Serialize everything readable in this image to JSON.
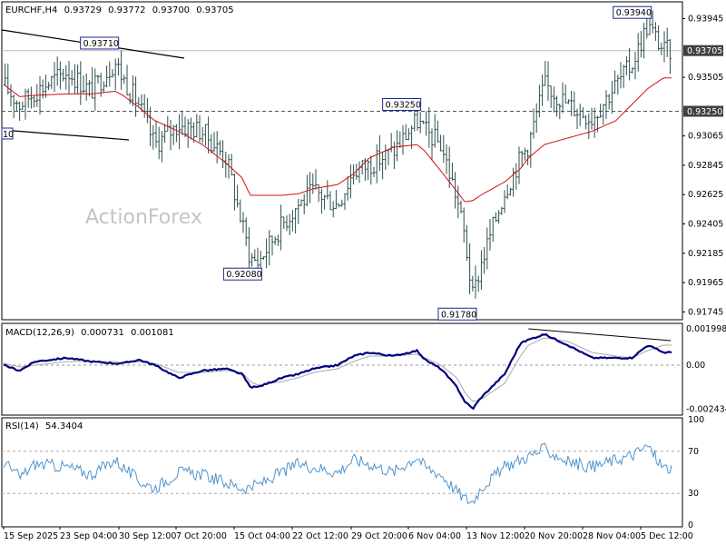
{
  "header": {
    "symbol": "EURCHF,H4",
    "open": "0.93729",
    "high": "0.93772",
    "low": "0.93700",
    "close": "0.93705"
  },
  "watermark": "ActionForex",
  "colors": {
    "candle": "#2f4f4f",
    "moving_average": "#d01010",
    "macd_line": "#000080",
    "macd_signal": "#a8a8a8",
    "rsi_line": "#4f94cd",
    "trendline": "#000000",
    "price_label_bg": "#404040"
  },
  "chart_data": [
    {
      "type": "candlestick",
      "panel": "price",
      "symbol": "EURCHF",
      "timeframe": "H4",
      "y_ticks": [
        "0.93945",
        "0.93725",
        "0.93505",
        "0.93285",
        "0.93065",
        "0.92845",
        "0.92625",
        "0.92405",
        "0.92185",
        "0.91965",
        "0.91745"
      ],
      "ylim": [
        0.917,
        0.9403
      ],
      "current_price": "0.93705",
      "horizontal_line": "0.93250",
      "annotations": [
        {
          "text": "0.93710",
          "value": 0.9371,
          "date": "29 Sep 2025"
        },
        {
          "text": "0.93250",
          "value": 0.9325,
          "date": "6 Nov 2025"
        },
        {
          "text": "0.92080",
          "value": 0.9208,
          "date": "17 Oct 2025"
        },
        {
          "text": "0.91780",
          "value": 0.9178,
          "date": "13 Nov 2025"
        },
        {
          "text": "0.93940",
          "value": 0.9394,
          "date": "5 Dec 2025"
        }
      ],
      "left_edge_label": "10",
      "close_series": {
        "x": [
          "15 Sep",
          "17 Sep",
          "19 Sep",
          "23 Sep",
          "26 Sep",
          "29 Sep",
          "30 Sep",
          "2 Oct",
          "4 Oct",
          "7 Oct",
          "10 Oct",
          "13 Oct",
          "15 Oct",
          "16 Oct",
          "17 Oct",
          "20 Oct",
          "22 Oct",
          "24 Oct",
          "27 Oct",
          "29 Oct",
          "31 Oct",
          "3 Nov",
          "6 Nov",
          "7 Nov",
          "9 Nov",
          "11 Nov",
          "12 Nov",
          "13 Nov",
          "14 Nov",
          "17 Nov",
          "19 Nov",
          "20 Nov",
          "22 Nov",
          "25 Nov",
          "28 Nov",
          "1 Dec",
          "3 Dec",
          "5 Dec",
          "7 Dec"
        ],
        "values": [
          0.9345,
          0.933,
          0.934,
          0.9355,
          0.934,
          0.9362,
          0.935,
          0.933,
          0.93,
          0.9315,
          0.931,
          0.929,
          0.924,
          0.9215,
          0.9212,
          0.924,
          0.9255,
          0.9265,
          0.9255,
          0.928,
          0.9285,
          0.9295,
          0.9318,
          0.931,
          0.93,
          0.926,
          0.923,
          0.9185,
          0.921,
          0.9265,
          0.929,
          0.93,
          0.9345,
          0.933,
          0.932,
          0.9345,
          0.936,
          0.939,
          0.93705
        ]
      },
      "moving_average": {
        "values": [
          0.9345,
          0.9336,
          0.9337,
          0.9338,
          0.9338,
          0.934,
          0.9337,
          0.9328,
          0.9318,
          0.931,
          0.93,
          0.9286,
          0.9275,
          0.9262,
          0.9262,
          0.9262,
          0.9263,
          0.9267,
          0.927,
          0.9278,
          0.929,
          0.9298,
          0.93,
          0.9295,
          0.928,
          0.9265,
          0.9257,
          0.9258,
          0.9262,
          0.9272,
          0.9282,
          0.929,
          0.93,
          0.9305,
          0.931,
          0.9318,
          0.933,
          0.9342,
          0.935
        ]
      }
    },
    {
      "type": "line",
      "panel": "macd",
      "indicator": "MACD(12,26,9)",
      "value1": "0.000731",
      "value2": "0.001081",
      "y_ticks": [
        "0.001998",
        "0.00",
        "-0.002434"
      ],
      "ylim": [
        -0.00255,
        0.0021
      ],
      "series": [
        {
          "name": "MACD",
          "values": [
            0.0,
            -0.0003,
            0.0002,
            0.0004,
            0.0002,
            0.0001,
            0.0001,
            0.0003,
            0.0,
            -0.0007,
            -0.0003,
            -0.0002,
            -0.0005,
            -0.0012,
            -0.0012,
            -0.0007,
            -0.0005,
            -0.0002,
            0.0,
            0.0005,
            0.0007,
            0.0005,
            0.0008,
            0.0003,
            -0.0002,
            -0.0012,
            -0.002,
            -0.0024,
            -0.0018,
            -0.0005,
            0.0012,
            0.0014,
            0.0017,
            0.0011,
            0.0004,
            0.0004,
            0.0004,
            0.0011,
            0.0007
          ]
        },
        {
          "name": "Signal",
          "values": [
            0.0001,
            -0.0001,
            0.0,
            0.0002,
            0.0002,
            0.0002,
            0.0001,
            0.0002,
            0.0001,
            -0.0004,
            -0.0004,
            -0.0003,
            -0.0004,
            -0.0009,
            -0.0011,
            -0.0009,
            -0.0007,
            -0.0004,
            -0.0002,
            0.0002,
            0.0005,
            0.0005,
            0.0006,
            0.0004,
            0.0,
            -0.0007,
            -0.0015,
            -0.002,
            -0.0019,
            -0.001,
            0.0005,
            0.0011,
            0.0015,
            0.0013,
            0.0007,
            0.0005,
            0.0004,
            0.0008,
            0.0011
          ]
        }
      ],
      "trendline": {
        "from": {
          "date": "20 Nov",
          "value": 0.002
        },
        "to": {
          "date": "7 Dec",
          "value": 0.00135
        }
      }
    },
    {
      "type": "line",
      "panel": "rsi",
      "indicator": "RSI(14)",
      "value": "54.3404",
      "y_ticks": [
        "100",
        "70",
        "30",
        "0"
      ],
      "ylim": [
        0,
        100
      ],
      "levels": [
        70,
        30
      ],
      "series": [
        {
          "name": "RSI",
          "values": [
            60,
            45,
            58,
            55,
            48,
            62,
            55,
            42,
            35,
            50,
            48,
            40,
            35,
            36,
            38,
            50,
            58,
            55,
            50,
            62,
            58,
            50,
            65,
            55,
            48,
            32,
            25,
            22,
            35,
            55,
            62,
            65,
            72,
            60,
            55,
            62,
            66,
            75,
            54
          ]
        }
      ]
    }
  ],
  "x_axis": {
    "labels": [
      "15 Sep 2025",
      "23 Sep 04:00",
      "30 Sep 12:00",
      "7 Oct 20:00",
      "15 Oct 04:00",
      "22 Oct 12:00",
      "29 Oct 20:00",
      "6 Nov 04:00",
      "13 Nov 12:00",
      "20 Nov 20:00",
      "28 Nov 04:00",
      "5 Dec 12:00"
    ]
  }
}
